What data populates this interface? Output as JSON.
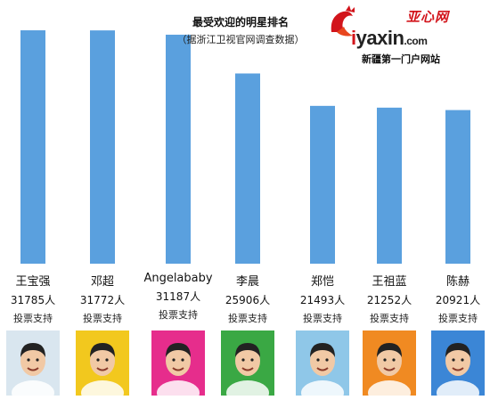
{
  "chart_data": {
    "type": "bar",
    "title": "最受欢迎的明星排名",
    "subtitle": "（据浙江卫视官网调查数据）",
    "categories": [
      "王宝强",
      "邓超",
      "Angelababy",
      "李晨",
      "郑恺",
      "王祖蓝",
      "陈赫"
    ],
    "values": [
      31785,
      31772,
      31187,
      25906,
      21493,
      21252,
      20921
    ],
    "value_labels": [
      "31785人",
      "31772人",
      "31187人",
      "25906人",
      "21493人",
      "21252人",
      "20921人"
    ],
    "note": "投票支持",
    "bar_color": "#5aa0de",
    "ylim": [
      0,
      33000
    ],
    "grid": false,
    "legend": "none"
  },
  "logo": {
    "cn": "亚心网",
    "en_i": "i",
    "en_main": "yaxin",
    "en_suffix": ".com",
    "tagline": "新疆第一门户网站",
    "accent": "#d2141b"
  },
  "photos": [
    {
      "icon": "person-photo-icon",
      "bg": "#d9e6ef"
    },
    {
      "icon": "person-photo-icon",
      "bg": "#f2c81e"
    },
    {
      "icon": "person-photo-icon",
      "bg": "#e62d8c"
    },
    {
      "icon": "person-photo-icon",
      "bg": "#3aa844"
    },
    {
      "icon": "person-photo-icon",
      "bg": "#8fc7e8"
    },
    {
      "icon": "person-photo-icon",
      "bg": "#f08a22"
    },
    {
      "icon": "person-photo-icon",
      "bg": "#3b86d6"
    }
  ]
}
